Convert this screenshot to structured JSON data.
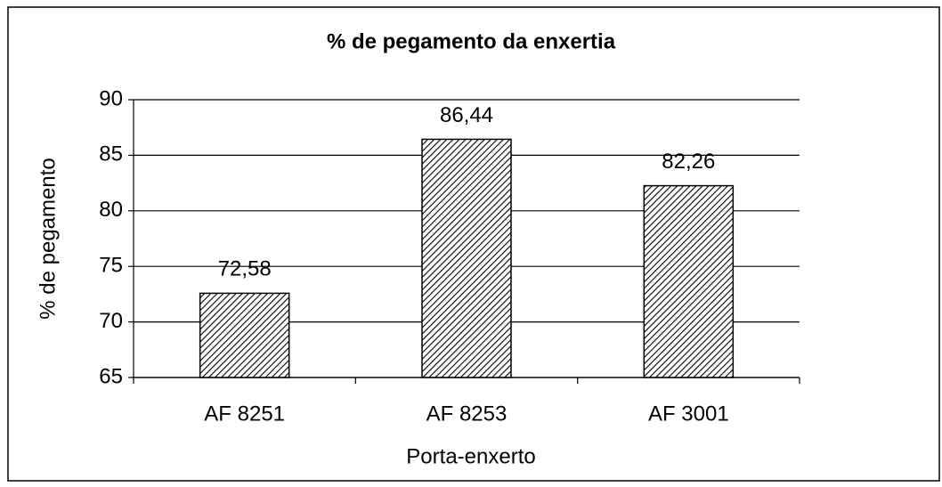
{
  "chart_data": {
    "type": "bar",
    "title": "% de pegamento da enxertia",
    "x_label": "Porta-enxerto",
    "y_label": "% de pegamento",
    "categories": [
      "AF 8251",
      "AF 8253",
      "AF 3001"
    ],
    "values": [
      72.58,
      86.44,
      82.26
    ],
    "value_labels": [
      "72,58",
      "86,44",
      "82,26"
    ],
    "color": "#000000",
    "ylim": [
      65,
      90
    ],
    "yticks": [
      65,
      70,
      75,
      80,
      85,
      90
    ],
    "grid": true
  }
}
